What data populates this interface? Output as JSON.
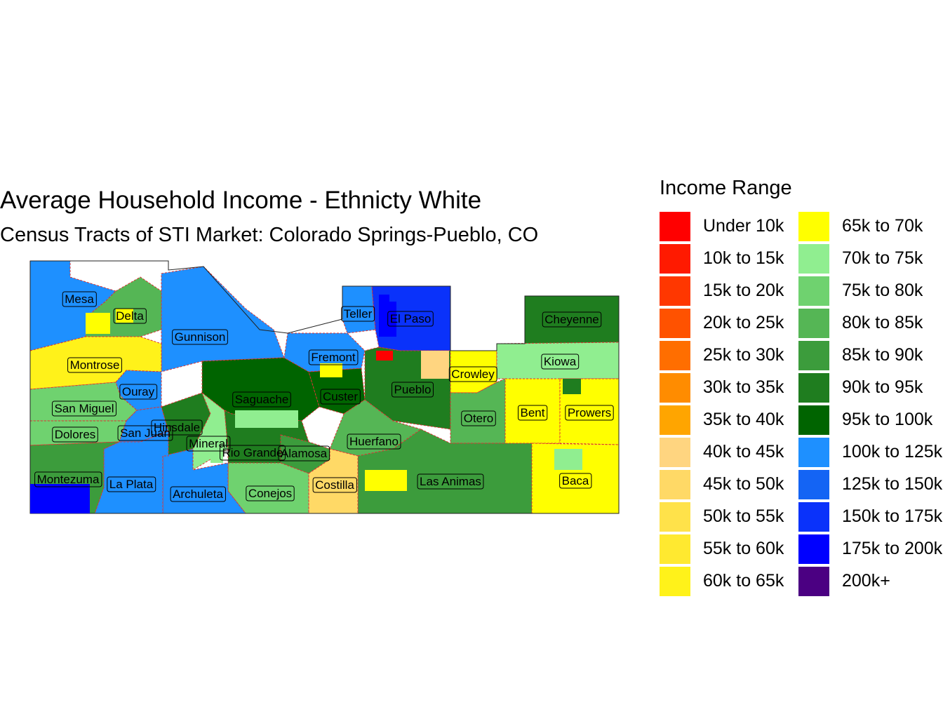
{
  "title": "Average Household Income - Ethnicty White",
  "subtitle": "Census Tracts of STI Market: Colorado Springs-Pueblo, CO",
  "legend": {
    "title": "Income Range",
    "items": [
      {
        "label": "Under 10k",
        "color": "#ff0000"
      },
      {
        "label": "10k to 15k",
        "color": "#ff1a00"
      },
      {
        "label": "15k to 20k",
        "color": "#ff3700"
      },
      {
        "label": "20k to 25k",
        "color": "#ff5200"
      },
      {
        "label": "25k to 30k",
        "color": "#ff6e00"
      },
      {
        "label": "30k to 35k",
        "color": "#ff8c00"
      },
      {
        "label": "35k to 40k",
        "color": "#ffa500"
      },
      {
        "label": "40k to 45k",
        "color": "#ffd580"
      },
      {
        "label": "45k to 50k",
        "color": "#ffd966"
      },
      {
        "label": "50k to 55k",
        "color": "#ffe24a"
      },
      {
        "label": "55k to 60k",
        "color": "#ffe930"
      },
      {
        "label": "60k to 65k",
        "color": "#fff21a"
      },
      {
        "label": "65k to 70k",
        "color": "#ffff00"
      },
      {
        "label": "70k to 75k",
        "color": "#90ee90"
      },
      {
        "label": "75k to 80k",
        "color": "#6fd26f"
      },
      {
        "label": "80k to 85k",
        "color": "#55b655"
      },
      {
        "label": "85k to 90k",
        "color": "#3c9c3c"
      },
      {
        "label": "90k to 95k",
        "color": "#1f7d1f"
      },
      {
        "label": "95k to 100k",
        "color": "#006400"
      },
      {
        "label": "100k to 125k",
        "color": "#1e90ff"
      },
      {
        "label": "125k to 150k",
        "color": "#1464f4"
      },
      {
        "label": "150k to 175k",
        "color": "#0a32fa"
      },
      {
        "label": "175k to 200k",
        "color": "#0000ff"
      },
      {
        "label": "200k+",
        "color": "#4b0082"
      }
    ]
  },
  "counties": [
    {
      "name": "Mesa",
      "income_range": "100k to 125k"
    },
    {
      "name": "Delta",
      "income_range": "80k to 85k"
    },
    {
      "name": "Gunnison",
      "income_range": "100k to 125k"
    },
    {
      "name": "Montrose",
      "income_range": "60k to 65k"
    },
    {
      "name": "Ouray",
      "income_range": "100k to 125k"
    },
    {
      "name": "San Miguel",
      "income_range": "75k to 80k"
    },
    {
      "name": "Dolores",
      "income_range": "75k to 80k"
    },
    {
      "name": "San Juan",
      "income_range": "100k to 125k"
    },
    {
      "name": "Hinsdale",
      "income_range": "90k to 95k"
    },
    {
      "name": "Mineral",
      "income_range": "70k to 75k"
    },
    {
      "name": "Saguache",
      "income_range": "95k to 100k"
    },
    {
      "name": "Rio Grande",
      "income_range": "90k to 95k"
    },
    {
      "name": "Alamosa",
      "income_range": "85k to 90k"
    },
    {
      "name": "Custer",
      "income_range": "95k to 100k"
    },
    {
      "name": "Fremont",
      "income_range": "100k to 125k"
    },
    {
      "name": "Teller",
      "income_range": "100k to 125k"
    },
    {
      "name": "El Paso",
      "income_range": "150k to 175k"
    },
    {
      "name": "Pueblo",
      "income_range": "90k to 95k"
    },
    {
      "name": "Crowley",
      "income_range": "65k to 70k"
    },
    {
      "name": "Cheyenne",
      "income_range": "90k to 95k"
    },
    {
      "name": "Kiowa",
      "income_range": "70k to 75k"
    },
    {
      "name": "Bent",
      "income_range": "65k to 70k"
    },
    {
      "name": "Prowers",
      "income_range": "65k to 70k"
    },
    {
      "name": "Otero",
      "income_range": "80k to 85k"
    },
    {
      "name": "Huerfano",
      "income_range": "80k to 85k"
    },
    {
      "name": "Las Animas",
      "income_range": "85k to 90k"
    },
    {
      "name": "Costilla",
      "income_range": "45k to 50k"
    },
    {
      "name": "Conejos",
      "income_range": "75k to 80k"
    },
    {
      "name": "Archuleta",
      "income_range": "100k to 125k"
    },
    {
      "name": "La Plata",
      "income_range": "100k to 125k"
    },
    {
      "name": "Montezuma",
      "income_range": "85k to 90k"
    },
    {
      "name": "Baca",
      "income_range": "65k to 70k"
    }
  ]
}
